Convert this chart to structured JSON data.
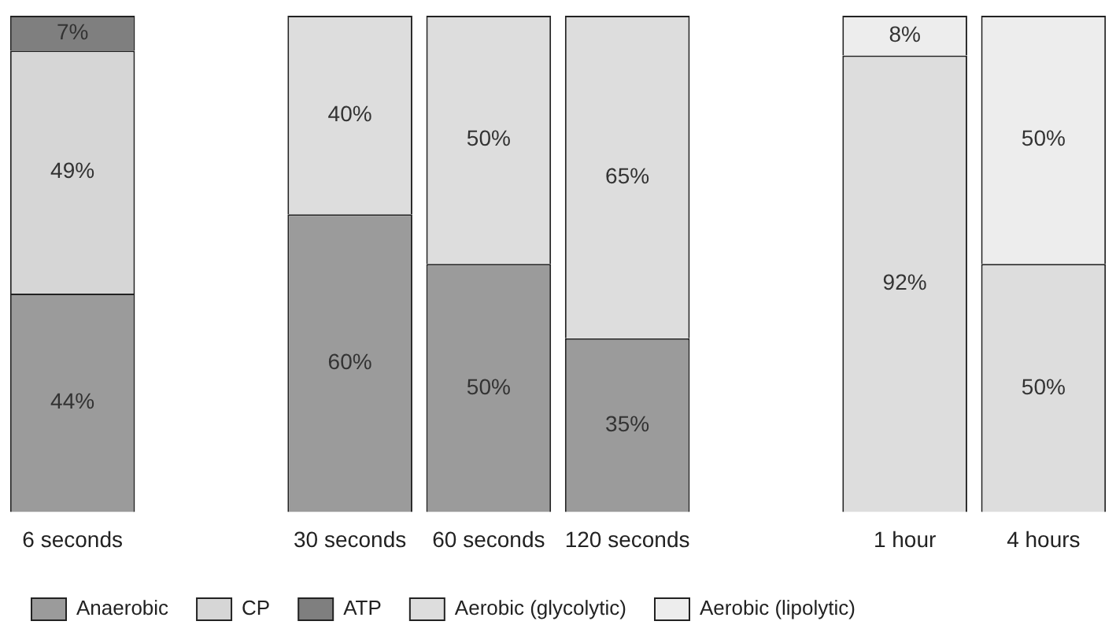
{
  "chart_data": {
    "type": "bar",
    "stacked": true,
    "categories": [
      "6 seconds",
      null,
      "30 seconds",
      "60 seconds",
      "120 seconds",
      null,
      "1 hour",
      "4 hours"
    ],
    "series": [
      {
        "name": "Anaerobic",
        "color": "#9b9b9b",
        "values": [
          44,
          null,
          60,
          50,
          35,
          null,
          null,
          null
        ],
        "value_labels": [
          "44%",
          null,
          "60%",
          "50%",
          "35%",
          null,
          null,
          null
        ]
      },
      {
        "name": "CP",
        "color": "#d6d6d6",
        "values": [
          49,
          null,
          null,
          null,
          null,
          null,
          null,
          null
        ],
        "value_labels": [
          "49%",
          null,
          null,
          null,
          null,
          null,
          null,
          null
        ]
      },
      {
        "name": "ATP",
        "color": "#7f7f7f",
        "values": [
          7,
          null,
          null,
          null,
          null,
          null,
          null,
          null
        ],
        "value_labels": [
          "7%",
          null,
          null,
          null,
          null,
          null,
          null,
          null
        ]
      },
      {
        "name": "Aerobic (glycolytic)",
        "color": "#dddddd",
        "values": [
          null,
          null,
          40,
          50,
          65,
          null,
          92,
          50
        ],
        "value_labels": [
          null,
          null,
          "40%",
          "50%",
          "65%",
          null,
          "92%",
          "50%"
        ]
      },
      {
        "name": "Aerobic (lipolytic)",
        "color": "#ededed",
        "values": [
          null,
          null,
          null,
          null,
          null,
          null,
          8,
          50
        ],
        "value_labels": [
          null,
          null,
          null,
          null,
          null,
          null,
          "8%",
          "50%"
        ]
      }
    ],
    "ylim": [
      0,
      100
    ],
    "tick_labels": "x",
    "legend": "bottom left"
  }
}
